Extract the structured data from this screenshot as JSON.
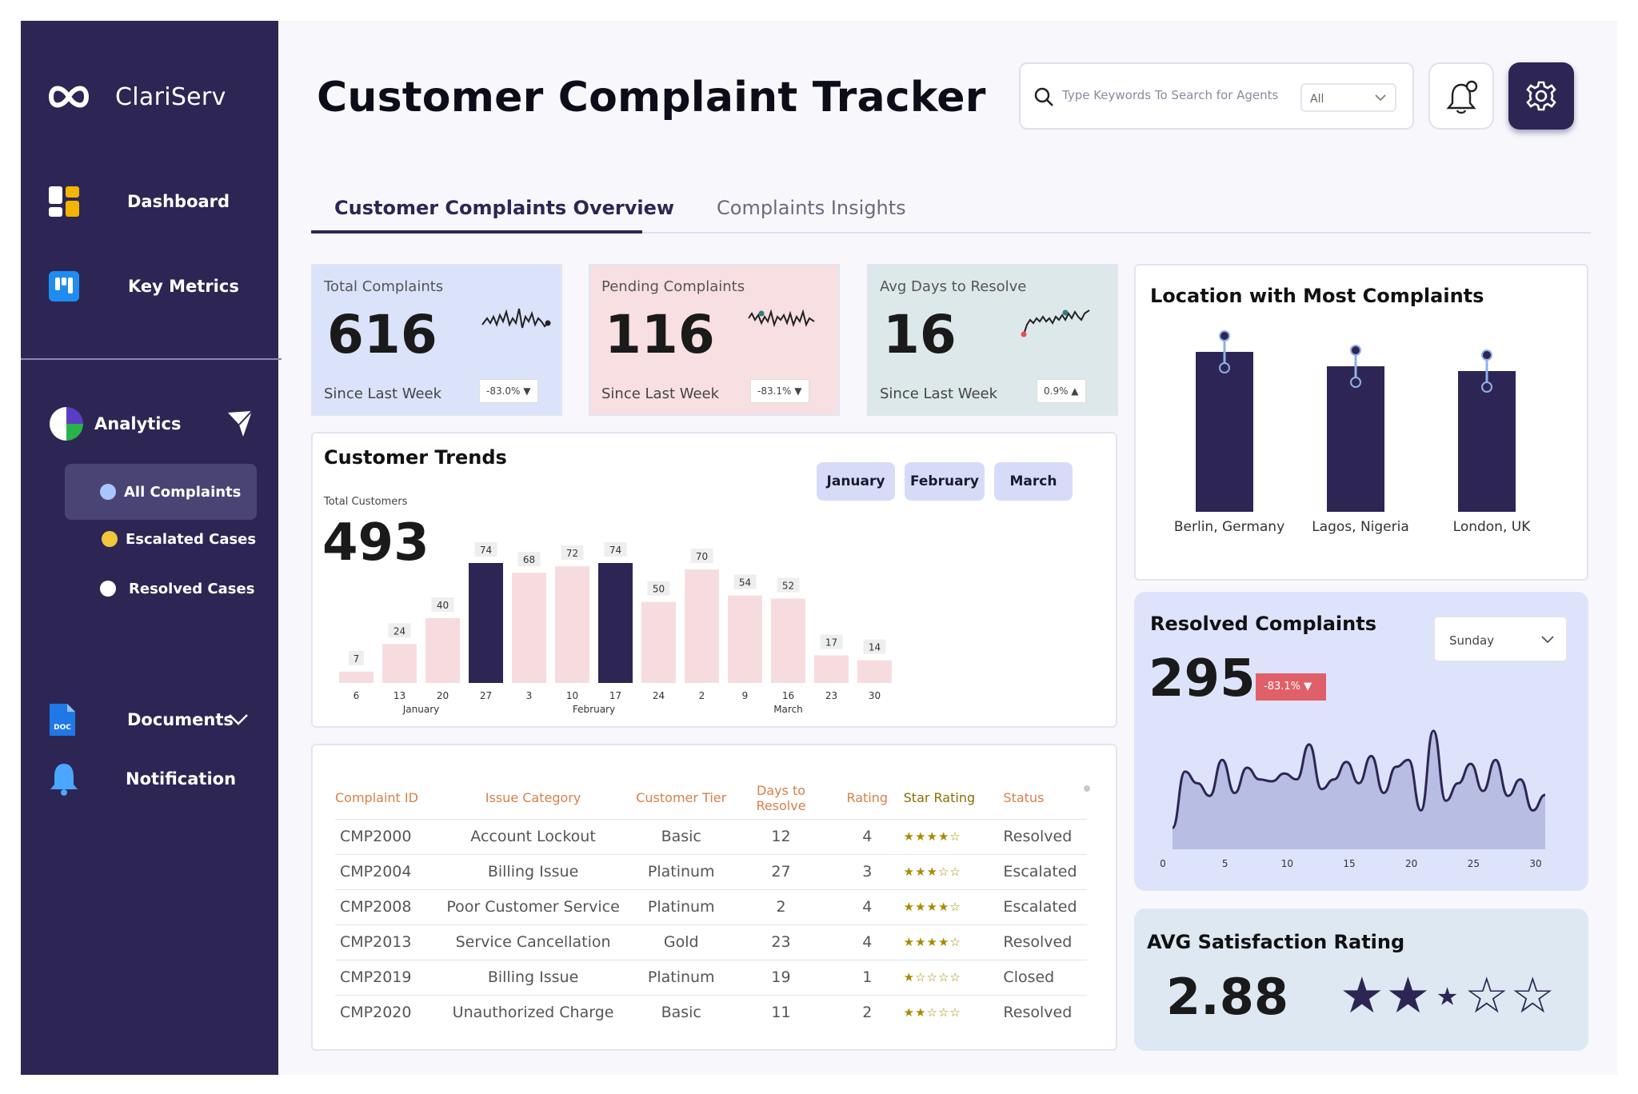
{
  "brand": {
    "name": "ClariServ"
  },
  "sidebar": {
    "nav": [
      {
        "label": "Dashboard"
      },
      {
        "label": "Key Metrics"
      }
    ],
    "analytics": {
      "label": "Analytics",
      "items": [
        {
          "label": "All Complaints",
          "color": "#a8c6ff"
        },
        {
          "label": "Escalated Cases",
          "color": "#f0c73a"
        },
        {
          "label": "Resolved Cases",
          "color": "#ffffff"
        }
      ]
    },
    "documents": {
      "label": "Documents",
      "icon_text": "DOC"
    },
    "notification": {
      "label": "Notification"
    }
  },
  "header": {
    "title": "Customer Complaint Tracker",
    "search_placeholder": "Type Keywords To Search for Agents",
    "search_filter": "All"
  },
  "tabs": [
    {
      "label": "Customer Complaints Overview",
      "active": true
    },
    {
      "label": "Complaints Insights",
      "active": false
    }
  ],
  "kpis": [
    {
      "label": "Total Complaints",
      "value": "616",
      "since": "Since Last Week",
      "change": "-83.0% ▼",
      "bg": "#dbe3fb"
    },
    {
      "label": "Pending Complaints",
      "value": "116",
      "since": "Since Last Week",
      "change": "-83.1% ▼",
      "bg": "#f8dfe2"
    },
    {
      "label": "Avg Days to Resolve",
      "value": "16",
      "since": "Since Last Week",
      "change": "0.9% ▲",
      "bg": "#dde8ea"
    }
  ],
  "trends": {
    "title": "Customer Trends",
    "total_label": "Total Customers",
    "total_value": "493",
    "months": [
      "January",
      "February",
      "March"
    ],
    "chart_data": {
      "type": "bar",
      "categories": [
        "6",
        "13",
        "20",
        "27",
        "3",
        "10",
        "17",
        "24",
        "2",
        "9",
        "16",
        "23",
        "30"
      ],
      "values": [
        7,
        24,
        40,
        74,
        68,
        72,
        74,
        50,
        70,
        54,
        52,
        17,
        14
      ],
      "highlight": [
        false,
        false,
        false,
        true,
        false,
        false,
        true,
        false,
        false,
        false,
        false,
        false,
        false
      ],
      "group_labels": [
        {
          "label": "January",
          "center_index": 1.5
        },
        {
          "label": "February",
          "center_index": 5.5
        },
        {
          "label": "March",
          "center_index": 10
        }
      ],
      "colors": {
        "bar": "#f7dcdf",
        "highlight": "#2d2654"
      }
    }
  },
  "location": {
    "title": "Location with Most Complaints",
    "chart_data": {
      "type": "bar",
      "categories": [
        "Berlin, Germany",
        "Lagos, Nigeria",
        "London, UK"
      ],
      "values": [
        100,
        91,
        88
      ],
      "color": "#2d2654"
    }
  },
  "resolved": {
    "title": "Resolved Complaints",
    "value": "295",
    "change": "-83.1% ▼",
    "day_filter": "Sunday",
    "chart_data": {
      "type": "area",
      "x": [
        0,
        1,
        2,
        3,
        4,
        5,
        6,
        7,
        8,
        9,
        10,
        11,
        12,
        13,
        14,
        15,
        16,
        17,
        18,
        19,
        20,
        21,
        22,
        23,
        24,
        25,
        26,
        27,
        28,
        29,
        30
      ],
      "y": [
        22,
        80,
        68,
        55,
        92,
        58,
        84,
        72,
        70,
        78,
        72,
        108,
        62,
        72,
        90,
        68,
        96,
        58,
        85,
        92,
        40,
        122,
        50,
        68,
        88,
        60,
        92,
        55,
        72,
        40,
        56
      ],
      "x_ticks": [
        0,
        5,
        10,
        15,
        20,
        25,
        30
      ],
      "ylim": [
        0,
        140
      ],
      "fill": "#b4b8e0",
      "line": "#2d2654"
    }
  },
  "satisfaction": {
    "title": "AVG Satisfaction Rating",
    "value": "2.88",
    "stars": "★★⋆☆☆"
  },
  "table": {
    "headers": [
      "Complaint ID",
      "Issue Category",
      "Customer Tier",
      "Days to Resolve",
      "Rating",
      "Star Rating",
      "Status"
    ],
    "rows": [
      [
        "CMP2000",
        "Account Lockout",
        "Basic",
        "12",
        "4",
        "★★★★☆",
        "Resolved"
      ],
      [
        "CMP2004",
        "Billing Issue",
        "Platinum",
        "27",
        "3",
        "★★★☆☆",
        "Escalated"
      ],
      [
        "CMP2008",
        "Poor Customer Service",
        "Platinum",
        "2",
        "4",
        "★★★★☆",
        "Escalated"
      ],
      [
        "CMP2013",
        "Service Cancellation",
        "Gold",
        "23",
        "4",
        "★★★★☆",
        "Resolved"
      ],
      [
        "CMP2019",
        "Billing Issue",
        "Platinum",
        "19",
        "1",
        "★☆☆☆☆",
        "Closed"
      ],
      [
        "CMP2020",
        "Unauthorized Charge",
        "Basic",
        "11",
        "2",
        "★★☆☆☆",
        "Resolved"
      ]
    ]
  }
}
